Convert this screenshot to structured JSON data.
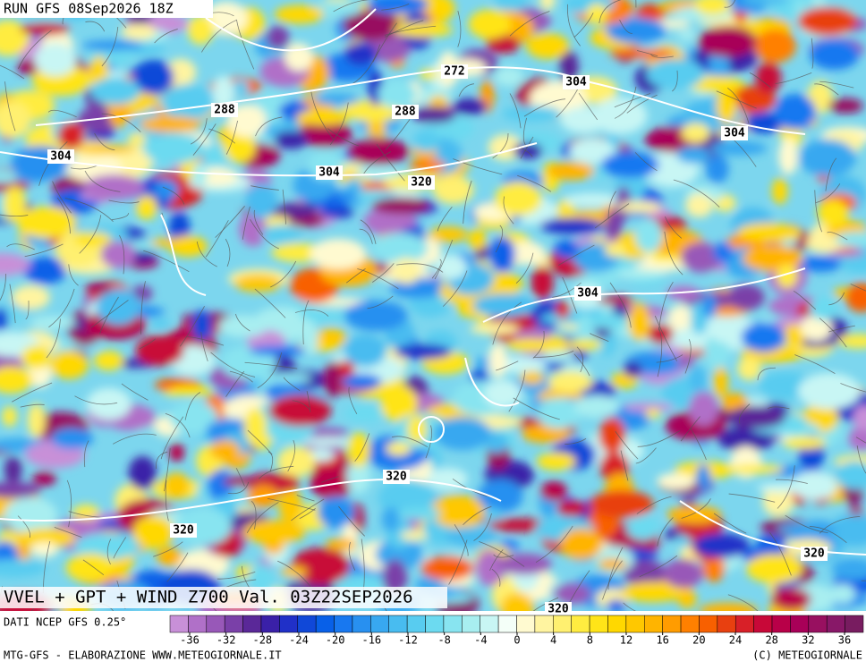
{
  "header": {
    "run": "RUN GFS 08Sep2026 18Z"
  },
  "title": "VVEL + GPT + WIND Z700 Val. 03Z22SEP2026",
  "contour_labels": [
    272,
    288,
    288,
    304,
    304,
    304,
    304,
    320,
    304,
    320,
    320,
    320,
    320
  ],
  "colorbar": {
    "ticks": [
      -36,
      -32,
      -28,
      -24,
      -20,
      -16,
      -12,
      -8,
      -4,
      0,
      4,
      8,
      12,
      16,
      20,
      24,
      28,
      32,
      36
    ],
    "colors": [
      "#c890d8",
      "#b070c8",
      "#9858b8",
      "#7a40a8",
      "#5a2898",
      "#3a20a8",
      "#2030c8",
      "#1048d8",
      "#0860e8",
      "#1878f0",
      "#2890f0",
      "#38a8f0",
      "#48bcf0",
      "#58ccf0",
      "#6cdaf0",
      "#88e4f0",
      "#a8eef0",
      "#c8f6f4",
      "#f4fff8",
      "#fffad0",
      "#fff4a0",
      "#fff070",
      "#ffec40",
      "#ffe418",
      "#ffd800",
      "#ffc800",
      "#ffb400",
      "#ff9c00",
      "#ff8000",
      "#f86000",
      "#e84010",
      "#d82028",
      "#c80838",
      "#b80048",
      "#a80058",
      "#981060",
      "#881868",
      "#781c60"
    ],
    "source": "DATI NCEP GFS 0.25°"
  },
  "footer": {
    "left": "MTG-GFS - ELABORAZIONE WWW.METEOGIORNALE.IT",
    "right": "(C) METEOGIORNALE"
  }
}
